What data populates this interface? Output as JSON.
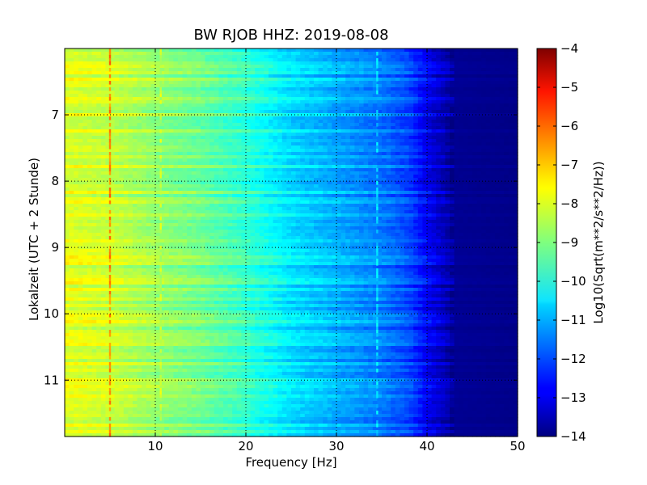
{
  "chart_data": {
    "type": "heatmap",
    "title": "BW RJOB HHZ: 2019-08-08",
    "xlabel": "Frequency [Hz]",
    "ylabel": "Lokalzeit (UTC + 2 Stunde)",
    "xlim": [
      0,
      50
    ],
    "ylim": [
      11.85,
      6.0
    ],
    "y_axis_inverted": true,
    "x_ticks": [
      10,
      20,
      30,
      40,
      50
    ],
    "y_ticks": [
      7,
      8,
      9,
      10,
      11
    ],
    "grid": true,
    "colormap": "jet",
    "colorbar": {
      "label": "Log10(Sqrt(m**2/s**2/Hz))",
      "range": [
        -14,
        -4
      ],
      "ticks": [
        -4,
        -5,
        -6,
        -7,
        -8,
        -9,
        -10,
        -11,
        -12,
        -13,
        -14
      ]
    },
    "trend": [
      {
        "frequency": 0.5,
        "value": -8.0
      },
      {
        "frequency": 5,
        "value": -8.2
      },
      {
        "frequency": 10,
        "value": -8.7
      },
      {
        "frequency": 15,
        "value": -9.1
      },
      {
        "frequency": 20,
        "value": -9.7
      },
      {
        "frequency": 25,
        "value": -10.5
      },
      {
        "frequency": 30,
        "value": -11.0
      },
      {
        "frequency": 35,
        "value": -11.5
      },
      {
        "frequency": 38,
        "value": -12.0
      },
      {
        "frequency": 40,
        "value": -12.8
      },
      {
        "frequency": 42,
        "value": -13.4
      },
      {
        "frequency": 43,
        "value": -13.8
      },
      {
        "frequency": 50,
        "value": -13.9
      }
    ],
    "features": [
      {
        "frequency": 5.0,
        "value": -6.6
      },
      {
        "frequency": 10.6,
        "value": -8.3
      },
      {
        "frequency": 34.5,
        "value": -10.6
      }
    ]
  }
}
